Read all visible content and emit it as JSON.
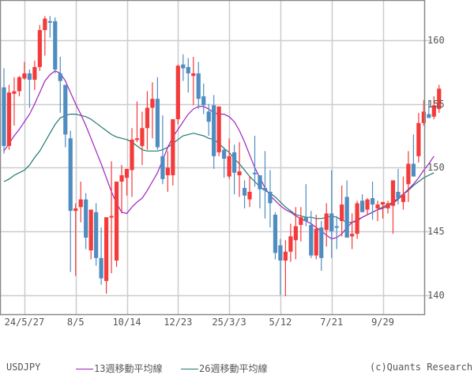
{
  "chart_data": {
    "type": "candlestick",
    "symbol": "USDJPY",
    "title": "",
    "xlabel": "",
    "ylabel": "",
    "ylim": [
      138.5,
      162.9
    ],
    "grid": true,
    "y_ticks": [
      140,
      145,
      150,
      155,
      160
    ],
    "x_ticks": [
      {
        "label": "24/5/27",
        "index": 4
      },
      {
        "label": "8/5",
        "index": 14
      },
      {
        "label": "10/14",
        "index": 24
      },
      {
        "label": "12/23",
        "index": 34
      },
      {
        "label": "25/3/3",
        "index": 44
      },
      {
        "label": "5/12",
        "index": 54
      },
      {
        "label": "7/21",
        "index": 64
      },
      {
        "label": "9/29",
        "index": 74
      }
    ],
    "colors": {
      "up": "#f43a3a",
      "down": "#4f8dc1",
      "ma13": "#a020c0",
      "ma26": "#207870",
      "grid": "#cccccc",
      "axis": "#888888"
    },
    "candles": [
      {
        "o": 156.3,
        "h": 157.8,
        "l": 151.1,
        "c": 151.7
      },
      {
        "o": 151.7,
        "h": 156.5,
        "l": 151.4,
        "c": 155.9
      },
      {
        "o": 155.8,
        "h": 157.1,
        "l": 153.3,
        "c": 156.0
      },
      {
        "o": 156.0,
        "h": 157.2,
        "l": 155.6,
        "c": 157.1
      },
      {
        "o": 157.0,
        "h": 158.3,
        "l": 156.9,
        "c": 157.4
      },
      {
        "o": 157.4,
        "h": 157.7,
        "l": 154.7,
        "c": 156.9
      },
      {
        "o": 156.9,
        "h": 158.4,
        "l": 156.1,
        "c": 157.9
      },
      {
        "o": 157.9,
        "h": 161.2,
        "l": 157.6,
        "c": 160.8
      },
      {
        "o": 160.8,
        "h": 161.9,
        "l": 158.8,
        "c": 161.7
      },
      {
        "o": 161.5,
        "h": 161.9,
        "l": 160.2,
        "c": 161.4
      },
      {
        "o": 161.5,
        "h": 161.8,
        "l": 157.4,
        "c": 157.7
      },
      {
        "o": 157.4,
        "h": 158.7,
        "l": 154.3,
        "c": 156.8
      },
      {
        "o": 156.5,
        "h": 156.1,
        "l": 151.6,
        "c": 152.6
      },
      {
        "o": 152.3,
        "h": 152.9,
        "l": 141.8,
        "c": 146.6
      },
      {
        "o": 146.6,
        "h": 147.2,
        "l": 141.5,
        "c": 146.8
      },
      {
        "o": 146.9,
        "h": 148.9,
        "l": 145.7,
        "c": 147.5
      },
      {
        "o": 147.5,
        "h": 148.0,
        "l": 143.6,
        "c": 144.5
      },
      {
        "o": 143.5,
        "h": 146.5,
        "l": 142.8,
        "c": 146.7
      },
      {
        "o": 146.5,
        "h": 147.2,
        "l": 142.3,
        "c": 142.9
      },
      {
        "o": 142.9,
        "h": 145.3,
        "l": 140.8,
        "c": 141.3
      },
      {
        "o": 141.1,
        "h": 146.1,
        "l": 140.1,
        "c": 146.1
      },
      {
        "o": 146.1,
        "h": 150.5,
        "l": 141.7,
        "c": 146.2
      },
      {
        "o": 142.7,
        "h": 148.8,
        "l": 142.2,
        "c": 148.9
      },
      {
        "o": 148.9,
        "h": 150.2,
        "l": 146.4,
        "c": 149.4
      },
      {
        "o": 149.2,
        "h": 149.9,
        "l": 147.8,
        "c": 149.9
      },
      {
        "o": 149.8,
        "h": 153.1,
        "l": 147.7,
        "c": 152.2
      },
      {
        "o": 152.2,
        "h": 155.2,
        "l": 152.0,
        "c": 152.3
      },
      {
        "o": 151.7,
        "h": 154.4,
        "l": 150.2,
        "c": 153.1
      },
      {
        "o": 153.1,
        "h": 156.0,
        "l": 151.4,
        "c": 154.7
      },
      {
        "o": 154.7,
        "h": 156.7,
        "l": 152.3,
        "c": 155.4
      },
      {
        "o": 155.4,
        "h": 157.1,
        "l": 151.4,
        "c": 151.6
      },
      {
        "o": 150.9,
        "h": 154.1,
        "l": 148.7,
        "c": 149.1
      },
      {
        "o": 149.4,
        "h": 151.3,
        "l": 148.1,
        "c": 150.0
      },
      {
        "o": 149.4,
        "h": 151.3,
        "l": 148.6,
        "c": 153.8
      },
      {
        "o": 153.8,
        "h": 158.1,
        "l": 153.4,
        "c": 158.0
      },
      {
        "o": 158.1,
        "h": 158.9,
        "l": 156.8,
        "c": 157.8
      },
      {
        "o": 157.9,
        "h": 158.6,
        "l": 155.9,
        "c": 157.4
      },
      {
        "o": 157.2,
        "h": 158.7,
        "l": 154.9,
        "c": 157.4
      },
      {
        "o": 157.4,
        "h": 158.3,
        "l": 154.6,
        "c": 155.4
      },
      {
        "o": 155.6,
        "h": 156.6,
        "l": 154.2,
        "c": 154.9
      },
      {
        "o": 154.4,
        "h": 155.0,
        "l": 152.5,
        "c": 153.6
      },
      {
        "o": 154.9,
        "h": 155.7,
        "l": 149.9,
        "c": 150.9
      },
      {
        "o": 151.2,
        "h": 154.6,
        "l": 150.9,
        "c": 154.8
      },
      {
        "o": 151.4,
        "h": 151.6,
        "l": 149.2,
        "c": 150.7
      },
      {
        "o": 149.3,
        "h": 152.3,
        "l": 149.1,
        "c": 150.9
      },
      {
        "o": 151.2,
        "h": 151.8,
        "l": 147.9,
        "c": 149.6
      },
      {
        "o": 149.4,
        "h": 152.0,
        "l": 147.7,
        "c": 149.7
      },
      {
        "o": 148.4,
        "h": 149.0,
        "l": 146.8,
        "c": 147.8
      },
      {
        "o": 147.5,
        "h": 149.3,
        "l": 146.9,
        "c": 148.1
      },
      {
        "o": 149.6,
        "h": 152.5,
        "l": 148.5,
        "c": 149.5
      },
      {
        "o": 149.4,
        "h": 149.0,
        "l": 146.8,
        "c": 148.3
      },
      {
        "o": 148.4,
        "h": 151.3,
        "l": 146.0,
        "c": 148.2
      },
      {
        "o": 148.1,
        "h": 149.8,
        "l": 145.3,
        "c": 147.2
      },
      {
        "o": 146.3,
        "h": 146.5,
        "l": 142.8,
        "c": 143.3
      },
      {
        "o": 143.9,
        "h": 144.4,
        "l": 140.0,
        "c": 142.7
      },
      {
        "o": 142.7,
        "h": 144.3,
        "l": 139.9,
        "c": 143.4
      },
      {
        "o": 143.4,
        "h": 145.6,
        "l": 142.6,
        "c": 144.6
      },
      {
        "o": 144.3,
        "h": 146.9,
        "l": 142.8,
        "c": 145.4
      },
      {
        "o": 145.5,
        "h": 146.9,
        "l": 144.2,
        "c": 146.1
      },
      {
        "o": 146.1,
        "h": 148.7,
        "l": 145.4,
        "c": 145.8
      },
      {
        "o": 145.5,
        "h": 146.6,
        "l": 142.9,
        "c": 143.1
      },
      {
        "o": 143.1,
        "h": 146.3,
        "l": 142.8,
        "c": 145.2
      },
      {
        "o": 145.3,
        "h": 145.8,
        "l": 141.9,
        "c": 142.9
      },
      {
        "o": 145.1,
        "h": 147.2,
        "l": 143.8,
        "c": 146.4
      },
      {
        "o": 146.4,
        "h": 149.8,
        "l": 142.9,
        "c": 145.0
      },
      {
        "o": 145.4,
        "h": 146.2,
        "l": 143.6,
        "c": 145.3
      },
      {
        "o": 145.8,
        "h": 148.6,
        "l": 144.6,
        "c": 147.1
      },
      {
        "o": 147.7,
        "h": 149.0,
        "l": 145.4,
        "c": 144.5
      },
      {
        "o": 144.6,
        "h": 146.4,
        "l": 143.6,
        "c": 144.8
      },
      {
        "o": 144.8,
        "h": 147.4,
        "l": 144.4,
        "c": 147.2
      },
      {
        "o": 147.4,
        "h": 147.9,
        "l": 146.7,
        "c": 146.5
      },
      {
        "o": 146.7,
        "h": 147.6,
        "l": 146.3,
        "c": 147.5
      },
      {
        "o": 147.6,
        "h": 148.9,
        "l": 145.9,
        "c": 147.1
      },
      {
        "o": 146.8,
        "h": 147.4,
        "l": 145.8,
        "c": 147.1
      },
      {
        "o": 147.1,
        "h": 146.5,
        "l": 146.0,
        "c": 147.3
      },
      {
        "o": 146.8,
        "h": 147.4,
        "l": 146.4,
        "c": 147.2
      },
      {
        "o": 147.0,
        "h": 148.2,
        "l": 144.8,
        "c": 149.0
      },
      {
        "o": 148.1,
        "h": 149.9,
        "l": 147.1,
        "c": 147.6
      },
      {
        "o": 147.3,
        "h": 149.3,
        "l": 146.7,
        "c": 147.9
      },
      {
        "o": 148.7,
        "h": 151.3,
        "l": 147.3,
        "c": 150.3
      },
      {
        "o": 150.3,
        "h": 152.6,
        "l": 149.8,
        "c": 149.3
      },
      {
        "o": 150.9,
        "h": 154.3,
        "l": 150.4,
        "c": 153.5
      },
      {
        "o": 153.5,
        "h": 155.3,
        "l": 153.3,
        "c": 154.4
      },
      {
        "o": 154.2,
        "h": 155.3,
        "l": 154.0,
        "c": 153.9
      },
      {
        "o": 154.0,
        "h": 155.6,
        "l": 153.8,
        "c": 154.9
      },
      {
        "o": 154.6,
        "h": 156.5,
        "l": 154.3,
        "c": 156.2
      }
    ],
    "ma13": [
      [
        0,
        151.3
      ],
      [
        1,
        151.9
      ],
      [
        2,
        152.5
      ],
      [
        3,
        153.0
      ],
      [
        4,
        153.6
      ],
      [
        5,
        154.2
      ],
      [
        6,
        155.0
      ],
      [
        7,
        155.9
      ],
      [
        8,
        156.8
      ],
      [
        9,
        157.3
      ],
      [
        10,
        157.6
      ],
      [
        11,
        157.4
      ],
      [
        12,
        156.8
      ],
      [
        13,
        155.9
      ],
      [
        14,
        155.0
      ],
      [
        15,
        154.2
      ],
      [
        16,
        153.3
      ],
      [
        17,
        152.3
      ],
      [
        18,
        151.3
      ],
      [
        19,
        150.3
      ],
      [
        20,
        149.2
      ],
      [
        21,
        148.1
      ],
      [
        22,
        147.2
      ],
      [
        23,
        146.5
      ],
      [
        24,
        146.4
      ],
      [
        25,
        146.9
      ],
      [
        26,
        147.3
      ],
      [
        27,
        147.6
      ],
      [
        28,
        148.2
      ],
      [
        29,
        148.9
      ],
      [
        30,
        149.6
      ],
      [
        31,
        150.6
      ],
      [
        32,
        151.6
      ],
      [
        33,
        152.4
      ],
      [
        34,
        153.0
      ],
      [
        35,
        153.6
      ],
      [
        36,
        154.2
      ],
      [
        37,
        154.6
      ],
      [
        38,
        154.8
      ],
      [
        39,
        154.8
      ],
      [
        40,
        154.6
      ],
      [
        41,
        154.3
      ],
      [
        42,
        154.2
      ],
      [
        43,
        154.2
      ],
      [
        44,
        154.0
      ],
      [
        45,
        153.6
      ],
      [
        46,
        152.9
      ],
      [
        47,
        152.0
      ],
      [
        48,
        151.0
      ],
      [
        49,
        150.0
      ],
      [
        50,
        149.2
      ],
      [
        51,
        148.4
      ],
      [
        52,
        147.8
      ],
      [
        53,
        147.4
      ],
      [
        54,
        147.0
      ],
      [
        55,
        146.7
      ],
      [
        56,
        146.5
      ],
      [
        57,
        146.2
      ],
      [
        58,
        146.0
      ],
      [
        59,
        145.8
      ],
      [
        60,
        145.6
      ],
      [
        61,
        145.3
      ],
      [
        62,
        145.0
      ],
      [
        63,
        144.7
      ],
      [
        64,
        144.4
      ],
      [
        65,
        144.5
      ],
      [
        66,
        144.8
      ],
      [
        67,
        145.3
      ],
      [
        68,
        145.7
      ],
      [
        69,
        145.9
      ],
      [
        70,
        146.1
      ],
      [
        71,
        146.3
      ],
      [
        72,
        146.5
      ],
      [
        73,
        146.7
      ],
      [
        74,
        146.8
      ],
      [
        75,
        147.0
      ],
      [
        76,
        147.2
      ],
      [
        77,
        147.5
      ],
      [
        78,
        147.9
      ],
      [
        79,
        148.3
      ],
      [
        80,
        148.7
      ],
      [
        81,
        149.2
      ],
      [
        82,
        149.8
      ],
      [
        83,
        150.3
      ],
      [
        84,
        150.9
      ]
    ],
    "ma26": [
      [
        0,
        148.9
      ],
      [
        1,
        149.1
      ],
      [
        2,
        149.4
      ],
      [
        3,
        149.6
      ],
      [
        4,
        149.8
      ],
      [
        5,
        150.2
      ],
      [
        6,
        150.8
      ],
      [
        7,
        151.3
      ],
      [
        8,
        152.0
      ],
      [
        9,
        152.7
      ],
      [
        10,
        153.4
      ],
      [
        11,
        153.9
      ],
      [
        12,
        154.1
      ],
      [
        13,
        154.2
      ],
      [
        14,
        154.2
      ],
      [
        15,
        154.1
      ],
      [
        16,
        154.0
      ],
      [
        17,
        153.8
      ],
      [
        18,
        153.5
      ],
      [
        19,
        153.2
      ],
      [
        20,
        152.9
      ],
      [
        21,
        152.6
      ],
      [
        22,
        152.4
      ],
      [
        23,
        152.3
      ],
      [
        24,
        152.2
      ],
      [
        25,
        152.0
      ],
      [
        26,
        151.7
      ],
      [
        27,
        151.4
      ],
      [
        28,
        151.3
      ],
      [
        29,
        151.3
      ],
      [
        30,
        151.3
      ],
      [
        31,
        151.4
      ],
      [
        32,
        151.6
      ],
      [
        33,
        151.9
      ],
      [
        34,
        152.2
      ],
      [
        35,
        152.5
      ],
      [
        36,
        152.6
      ],
      [
        37,
        152.7
      ],
      [
        38,
        152.6
      ],
      [
        39,
        152.5
      ],
      [
        40,
        152.3
      ],
      [
        41,
        152.2
      ],
      [
        42,
        151.9
      ],
      [
        43,
        151.5
      ],
      [
        44,
        151.2
      ],
      [
        45,
        150.7
      ],
      [
        46,
        150.3
      ],
      [
        47,
        149.8
      ],
      [
        48,
        149.3
      ],
      [
        49,
        148.9
      ],
      [
        50,
        148.5
      ],
      [
        51,
        148.2
      ],
      [
        52,
        148.0
      ],
      [
        53,
        147.7
      ],
      [
        54,
        147.3
      ],
      [
        55,
        146.9
      ],
      [
        56,
        146.6
      ],
      [
        57,
        146.3
      ],
      [
        58,
        146.2
      ],
      [
        59,
        146.1
      ],
      [
        60,
        146.1
      ],
      [
        61,
        146.0
      ],
      [
        62,
        146.0
      ],
      [
        63,
        146.1
      ],
      [
        64,
        146.2
      ],
      [
        65,
        146.1
      ],
      [
        66,
        145.9
      ],
      [
        67,
        145.7
      ],
      [
        68,
        145.7
      ],
      [
        69,
        145.8
      ],
      [
        70,
        146.1
      ],
      [
        71,
        146.3
      ],
      [
        72,
        146.5
      ],
      [
        73,
        146.7
      ],
      [
        74,
        146.9
      ],
      [
        75,
        147.1
      ],
      [
        76,
        147.3
      ],
      [
        77,
        147.6
      ],
      [
        78,
        147.9
      ],
      [
        79,
        148.2
      ],
      [
        80,
        148.6
      ],
      [
        81,
        148.9
      ],
      [
        82,
        149.2
      ],
      [
        83,
        149.4
      ],
      [
        84,
        149.6
      ]
    ]
  },
  "legend": {
    "symbol_label": "USDJPY",
    "ma13_label": "13週移動平均線",
    "ma26_label": "26週移動平均線",
    "credit": "(c)Quants Research"
  }
}
